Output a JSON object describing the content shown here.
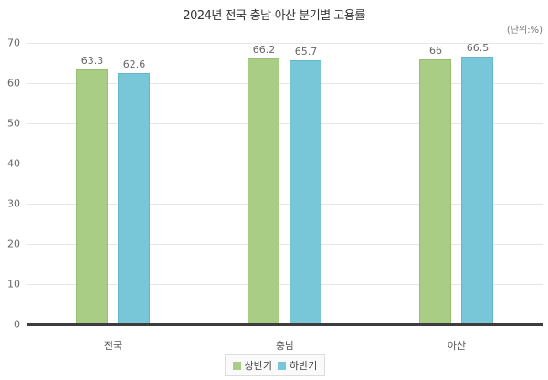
{
  "chart_data": {
    "type": "bar",
    "title": "2024년 전국-충남-아산 분기별 고용률",
    "unit_label": "(단위:%)",
    "xlabel": "",
    "ylabel": "",
    "ylim": [
      0,
      70
    ],
    "yticks": [
      "70",
      "60",
      "50",
      "40",
      "30",
      "20",
      "10",
      "0"
    ],
    "grid": true,
    "legend_position": "bottom",
    "categories": [
      "전국",
      "충남",
      "아산"
    ],
    "series": [
      {
        "name": "상반기",
        "color": "#aacd86",
        "values": [
          63.3,
          66.2,
          66
        ],
        "labels": [
          "63.3",
          "66.2",
          "66"
        ]
      },
      {
        "name": "하반기",
        "color": "#77c7d8",
        "values": [
          62.6,
          65.7,
          66.5
        ],
        "labels": [
          "62.6",
          "65.7",
          "66.5"
        ]
      }
    ]
  }
}
